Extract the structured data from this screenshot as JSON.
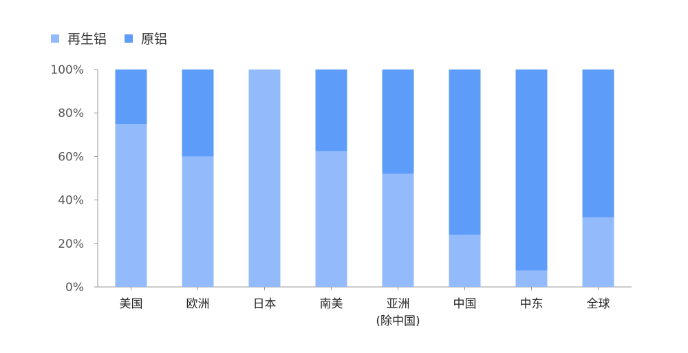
{
  "chart_data": {
    "type": "bar",
    "stacked": true,
    "percent": true,
    "categories": [
      [
        "美国"
      ],
      [
        "欧洲"
      ],
      [
        "日本"
      ],
      [
        "南美"
      ],
      [
        "亚洲",
        "(除中国)"
      ],
      [
        "中国"
      ],
      [
        "中东"
      ],
      [
        "全球"
      ]
    ],
    "series": [
      {
        "name": "再生铝",
        "color": "#93bbfc",
        "values": [
          75,
          60,
          100,
          62.5,
          52,
          24,
          7.5,
          32
        ]
      },
      {
        "name": "原铝",
        "color": "#5e9cfa",
        "values": [
          25,
          40,
          0,
          37.5,
          48,
          76,
          92.5,
          68
        ]
      }
    ],
    "yticks": [
      "0%",
      "20%",
      "40%",
      "60%",
      "80%",
      "100%"
    ],
    "ylim": [
      0,
      100
    ],
    "legend_position": "top-left",
    "grid": false
  }
}
